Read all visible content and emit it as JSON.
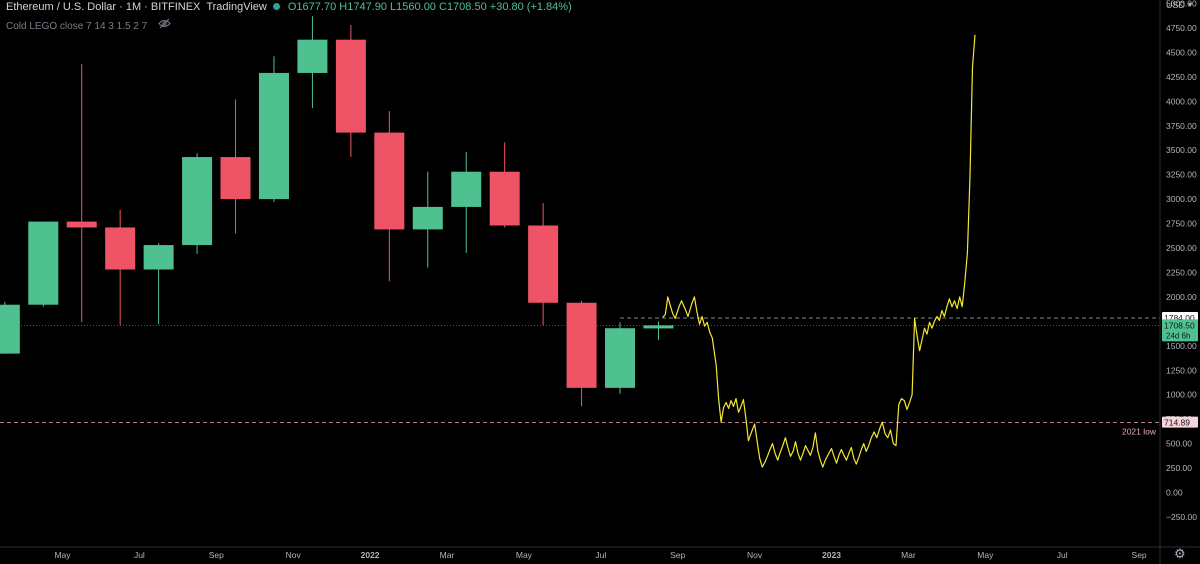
{
  "header": {
    "symbol": "Ethereum / U.S. Dollar",
    "sep1": " · ",
    "interval": "1M",
    "sep2": " · ",
    "exchange": "BITFINEX",
    "platform": "TradingView",
    "open": "O1677.70",
    "high": "H1747.90",
    "low": "L1560.00",
    "close": "C1708.50",
    "change": "+30.80 (+1.84%)",
    "status_color": "#26a69a"
  },
  "indicator": {
    "name": "Cold LEGO",
    "params": "close 7 14 3 1.5 2 7",
    "visibility_icon": "eye-crossed-icon"
  },
  "currency": {
    "label": "USD",
    "caret_icon": "chevron-down-icon"
  },
  "settings_icon": "gear-icon",
  "colors": {
    "up": "#4fc191",
    "down": "#ee5466",
    "projection": "#f5e732",
    "bg": "#000000",
    "axis_text": "#b2b5be"
  },
  "chart_data": {
    "type": "candlestick",
    "symbol": "Ethereum / U.S. Dollar",
    "interval": "1M",
    "ylim": [
      -250,
      5000
    ],
    "y_ticks": [
      -250,
      0,
      250,
      500,
      750,
      1000,
      1250,
      1500,
      1750,
      2000,
      2250,
      2500,
      2750,
      3000,
      3250,
      3500,
      3750,
      4000,
      4250,
      4500,
      4750,
      5000
    ],
    "y_tick_labels": [
      "−250.00",
      "0.00",
      "250.00",
      "500.00",
      "750.00",
      "1000.00",
      "1250.00",
      "1500.00",
      "1750.00",
      "2000.00",
      "2250.00",
      "2500.00",
      "2750.00",
      "3000.00",
      "3250.00",
      "3500.00",
      "3750.00",
      "4000.00",
      "4250.00",
      "4500.00",
      "4750.00",
      "5000.00"
    ],
    "x_tick_labels": [
      {
        "date": "2021-05",
        "label": "May",
        "bold": false
      },
      {
        "date": "2021-07",
        "label": "Jul",
        "bold": false
      },
      {
        "date": "2021-09",
        "label": "Sep",
        "bold": false
      },
      {
        "date": "2021-11",
        "label": "Nov",
        "bold": false
      },
      {
        "date": "2022-01",
        "label": "2022",
        "bold": true
      },
      {
        "date": "2022-03",
        "label": "Mar",
        "bold": false
      },
      {
        "date": "2022-05",
        "label": "May",
        "bold": false
      },
      {
        "date": "2022-07",
        "label": "Jul",
        "bold": false
      },
      {
        "date": "2022-09",
        "label": "Sep",
        "bold": false
      },
      {
        "date": "2022-11",
        "label": "Nov",
        "bold": false
      },
      {
        "date": "2023-01",
        "label": "2023",
        "bold": true
      },
      {
        "date": "2023-03",
        "label": "Mar",
        "bold": false
      },
      {
        "date": "2023-05",
        "label": "May",
        "bold": false
      },
      {
        "date": "2023-07",
        "label": "Jul",
        "bold": false
      },
      {
        "date": "2023-09",
        "label": "Sep",
        "bold": false
      }
    ],
    "candles": [
      {
        "date": "2021-03",
        "open": 1420,
        "high": 1950,
        "low": 1420,
        "close": 1920
      },
      {
        "date": "2021-04",
        "open": 1920,
        "high": 2770,
        "low": 1900,
        "close": 2770
      },
      {
        "date": "2021-05",
        "open": 2770,
        "high": 4380,
        "low": 1740,
        "close": 2710
      },
      {
        "date": "2021-06",
        "open": 2710,
        "high": 2890,
        "low": 1710,
        "close": 2280
      },
      {
        "date": "2021-07",
        "open": 2280,
        "high": 2550,
        "low": 1720,
        "close": 2530
      },
      {
        "date": "2021-08",
        "open": 2530,
        "high": 3470,
        "low": 2440,
        "close": 3430
      },
      {
        "date": "2021-09",
        "open": 3430,
        "high": 4020,
        "low": 2650,
        "close": 3000
      },
      {
        "date": "2021-10",
        "open": 3000,
        "high": 4460,
        "low": 2970,
        "close": 4290
      },
      {
        "date": "2021-11",
        "open": 4290,
        "high": 4870,
        "low": 3930,
        "close": 4630
      },
      {
        "date": "2021-12",
        "open": 4630,
        "high": 4780,
        "low": 3430,
        "close": 3680
      },
      {
        "date": "2022-01",
        "open": 3680,
        "high": 3900,
        "low": 2160,
        "close": 2690
      },
      {
        "date": "2022-02",
        "open": 2690,
        "high": 3280,
        "low": 2300,
        "close": 2920
      },
      {
        "date": "2022-03",
        "open": 2920,
        "high": 3480,
        "low": 2450,
        "close": 3280
      },
      {
        "date": "2022-04",
        "open": 3280,
        "high": 3580,
        "low": 2710,
        "close": 2730
      },
      {
        "date": "2022-05",
        "open": 2730,
        "high": 2960,
        "low": 1710,
        "close": 1940
      },
      {
        "date": "2022-06",
        "open": 1940,
        "high": 1960,
        "low": 880,
        "close": 1070
      },
      {
        "date": "2022-07",
        "open": 1070,
        "high": 1740,
        "low": 1010,
        "close": 1680
      },
      {
        "date": "2022-08",
        "open": 1677.7,
        "high": 1747.9,
        "low": 1560,
        "close": 1708.5
      }
    ],
    "projection": {
      "name": "",
      "color": "#f5e732",
      "points": [
        {
          "date": "2022-08-20",
          "value": 1790
        },
        {
          "date": "2022-08-22",
          "value": 1820
        },
        {
          "date": "2022-08-24",
          "value": 2000
        },
        {
          "date": "2022-08-26",
          "value": 1910
        },
        {
          "date": "2022-08-28",
          "value": 1830
        },
        {
          "date": "2022-08-30",
          "value": 1780
        },
        {
          "date": "2022-09-02",
          "value": 1900
        },
        {
          "date": "2022-09-04",
          "value": 1960
        },
        {
          "date": "2022-09-07",
          "value": 1870
        },
        {
          "date": "2022-09-09",
          "value": 1800
        },
        {
          "date": "2022-09-12",
          "value": 1930
        },
        {
          "date": "2022-09-14",
          "value": 2000
        },
        {
          "date": "2022-09-16",
          "value": 1850
        },
        {
          "date": "2022-09-18",
          "value": 1720
        },
        {
          "date": "2022-09-20",
          "value": 1800
        },
        {
          "date": "2022-09-22",
          "value": 1700
        },
        {
          "date": "2022-09-24",
          "value": 1740
        },
        {
          "date": "2022-09-26",
          "value": 1640
        },
        {
          "date": "2022-09-28",
          "value": 1580
        },
        {
          "date": "2022-10-01",
          "value": 1300
        },
        {
          "date": "2022-10-03",
          "value": 960
        },
        {
          "date": "2022-10-05",
          "value": 720
        },
        {
          "date": "2022-10-07",
          "value": 870
        },
        {
          "date": "2022-10-09",
          "value": 920
        },
        {
          "date": "2022-10-11",
          "value": 860
        },
        {
          "date": "2022-10-13",
          "value": 940
        },
        {
          "date": "2022-10-15",
          "value": 880
        },
        {
          "date": "2022-10-17",
          "value": 960
        },
        {
          "date": "2022-10-19",
          "value": 820
        },
        {
          "date": "2022-10-21",
          "value": 880
        },
        {
          "date": "2022-10-23",
          "value": 950
        },
        {
          "date": "2022-10-25",
          "value": 760
        },
        {
          "date": "2022-10-27",
          "value": 530
        },
        {
          "date": "2022-10-29",
          "value": 600
        },
        {
          "date": "2022-11-01",
          "value": 700
        },
        {
          "date": "2022-11-03",
          "value": 520
        },
        {
          "date": "2022-11-05",
          "value": 350
        },
        {
          "date": "2022-11-07",
          "value": 260
        },
        {
          "date": "2022-11-09",
          "value": 310
        },
        {
          "date": "2022-11-11",
          "value": 370
        },
        {
          "date": "2022-11-13",
          "value": 440
        },
        {
          "date": "2022-11-15",
          "value": 500
        },
        {
          "date": "2022-11-17",
          "value": 400
        },
        {
          "date": "2022-11-19",
          "value": 330
        },
        {
          "date": "2022-11-21",
          "value": 410
        },
        {
          "date": "2022-11-23",
          "value": 480
        },
        {
          "date": "2022-11-25",
          "value": 560
        },
        {
          "date": "2022-11-27",
          "value": 460
        },
        {
          "date": "2022-11-29",
          "value": 370
        },
        {
          "date": "2022-12-01",
          "value": 420
        },
        {
          "date": "2022-12-03",
          "value": 520
        },
        {
          "date": "2022-12-05",
          "value": 400
        },
        {
          "date": "2022-12-07",
          "value": 330
        },
        {
          "date": "2022-12-09",
          "value": 400
        },
        {
          "date": "2022-12-11",
          "value": 480
        },
        {
          "date": "2022-12-13",
          "value": 430
        },
        {
          "date": "2022-12-15",
          "value": 380
        },
        {
          "date": "2022-12-17",
          "value": 460
        },
        {
          "date": "2022-12-19",
          "value": 610
        },
        {
          "date": "2022-12-21",
          "value": 420
        },
        {
          "date": "2022-12-23",
          "value": 330
        },
        {
          "date": "2022-12-25",
          "value": 260
        },
        {
          "date": "2022-12-27",
          "value": 330
        },
        {
          "date": "2022-12-29",
          "value": 380
        },
        {
          "date": "2023-01-01",
          "value": 450
        },
        {
          "date": "2023-01-03",
          "value": 370
        },
        {
          "date": "2023-01-05",
          "value": 300
        },
        {
          "date": "2023-01-07",
          "value": 380
        },
        {
          "date": "2023-01-09",
          "value": 440
        },
        {
          "date": "2023-01-11",
          "value": 380
        },
        {
          "date": "2023-01-13",
          "value": 330
        },
        {
          "date": "2023-01-15",
          "value": 400
        },
        {
          "date": "2023-01-17",
          "value": 460
        },
        {
          "date": "2023-01-19",
          "value": 350
        },
        {
          "date": "2023-01-21",
          "value": 290
        },
        {
          "date": "2023-01-23",
          "value": 360
        },
        {
          "date": "2023-01-25",
          "value": 440
        },
        {
          "date": "2023-01-27",
          "value": 500
        },
        {
          "date": "2023-01-29",
          "value": 420
        },
        {
          "date": "2023-01-31",
          "value": 480
        },
        {
          "date": "2023-02-02",
          "value": 560
        },
        {
          "date": "2023-02-04",
          "value": 620
        },
        {
          "date": "2023-02-06",
          "value": 560
        },
        {
          "date": "2023-02-08",
          "value": 650
        },
        {
          "date": "2023-02-10",
          "value": 720
        },
        {
          "date": "2023-02-12",
          "value": 600
        },
        {
          "date": "2023-02-14",
          "value": 560
        },
        {
          "date": "2023-02-16",
          "value": 640
        },
        {
          "date": "2023-02-18",
          "value": 500
        },
        {
          "date": "2023-02-20",
          "value": 480
        },
        {
          "date": "2023-02-22",
          "value": 900
        },
        {
          "date": "2023-02-24",
          "value": 960
        },
        {
          "date": "2023-02-26",
          "value": 940
        },
        {
          "date": "2023-02-28",
          "value": 850
        },
        {
          "date": "2023-03-02",
          "value": 920
        },
        {
          "date": "2023-03-04",
          "value": 1000
        },
        {
          "date": "2023-03-06",
          "value": 1780
        },
        {
          "date": "2023-03-08",
          "value": 1600
        },
        {
          "date": "2023-03-10",
          "value": 1450
        },
        {
          "date": "2023-03-12",
          "value": 1560
        },
        {
          "date": "2023-03-14",
          "value": 1680
        },
        {
          "date": "2023-03-16",
          "value": 1620
        },
        {
          "date": "2023-03-18",
          "value": 1740
        },
        {
          "date": "2023-03-20",
          "value": 1680
        },
        {
          "date": "2023-03-22",
          "value": 1750
        },
        {
          "date": "2023-03-24",
          "value": 1800
        },
        {
          "date": "2023-03-26",
          "value": 1760
        },
        {
          "date": "2023-03-28",
          "value": 1860
        },
        {
          "date": "2023-03-30",
          "value": 1800
        },
        {
          "date": "2023-04-01",
          "value": 1900
        },
        {
          "date": "2023-04-03",
          "value": 1980
        },
        {
          "date": "2023-04-05",
          "value": 1900
        },
        {
          "date": "2023-04-07",
          "value": 1960
        },
        {
          "date": "2023-04-09",
          "value": 1880
        },
        {
          "date": "2023-04-11",
          "value": 2000
        },
        {
          "date": "2023-04-13",
          "value": 1900
        },
        {
          "date": "2023-04-15",
          "value": 2150
        },
        {
          "date": "2023-04-17",
          "value": 2450
        },
        {
          "date": "2023-04-19",
          "value": 3200
        },
        {
          "date": "2023-04-21",
          "value": 4350
        },
        {
          "date": "2023-04-23",
          "value": 4680
        }
      ]
    },
    "horizontal_lines": [
      {
        "value": 1784.0,
        "label": "1784.00",
        "style": "dashed",
        "color": "#d1d4dc",
        "start_date": "2022-07"
      },
      {
        "value": 1708.5,
        "label": "1708.50",
        "sub_label": "24d 6h",
        "style": "dotted",
        "color": "#4fc191"
      },
      {
        "value": 714.89,
        "label": "714.89",
        "annotation": "2021 low",
        "style": "dashed",
        "color": "#f2a7b3"
      }
    ]
  }
}
